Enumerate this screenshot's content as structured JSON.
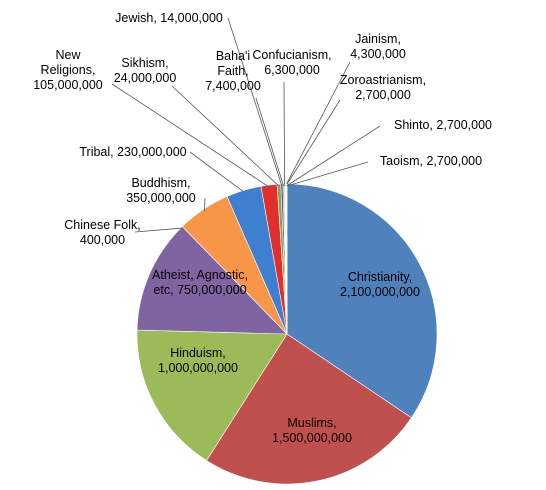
{
  "chart_data": {
    "type": "pie",
    "categories": [
      "Christianity,",
      "Muslims,",
      "Hinduism,",
      "Atheist, Agnostic, etc,",
      "Chinese Folk,",
      "Buddhism,",
      "Tribal,",
      "New Religions,",
      "Sikhism,",
      "Jewish,",
      "Baha'i Faith,",
      "Confucianism,",
      "Jainism,",
      "Zoroastrianism,",
      "Shinto,",
      "Taoism,"
    ],
    "values": [
      2100000000,
      1500000000,
      1000000000,
      750000000,
      400000,
      350000000,
      230000000,
      105000000,
      24000000,
      14000000,
      7400000,
      6300000,
      4300000,
      2700000,
      2700000,
      2700000
    ],
    "value_labels": [
      "2,100,000,000",
      "1,500,000,000",
      "1,000,000,000",
      "750,000,000",
      "400,000",
      "350,000,000",
      "230,000,000",
      "105,000,000",
      "24,000,000",
      "14,000,000",
      "7,400,000",
      "6,300,000",
      "4,300,000",
      "2,700,000",
      "2,700,000",
      "2,700,000"
    ],
    "colors": [
      "#4f81bd",
      "#c0504d",
      "#9bbb59",
      "#8064a2",
      "#4bacc6",
      "#f79646",
      "#3f7fd0",
      "#e0302e",
      "#86a34c",
      "#6b5387",
      "#3f9fb7",
      "#d57f33",
      "#3d6aa5",
      "#a84340",
      "#86a34c",
      "#6f5790"
    ]
  }
}
